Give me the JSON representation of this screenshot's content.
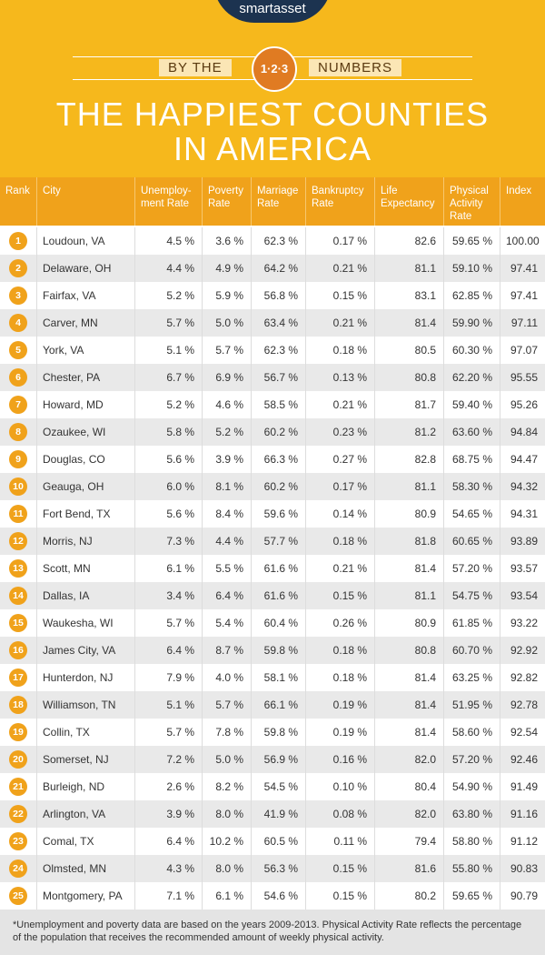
{
  "logo": "smartasset",
  "banner": {
    "left": "BY THE",
    "badge": "1·2·3",
    "right": "NUMBERS"
  },
  "title": {
    "line1": "THE HAPPIEST COUNTIES",
    "line2": "IN AMERICA"
  },
  "table": {
    "headers": [
      "Rank",
      "City",
      "Unemploy-ment Rate",
      "Poverty Rate",
      "Marriage Rate",
      "Bankruptcy Rate",
      "Life Expectancy",
      "Physical Activity Rate",
      "Index"
    ],
    "rows": [
      [
        "1",
        "Loudoun, VA",
        "4.5 %",
        "3.6 %",
        "62.3 %",
        "0.17 %",
        "82.6",
        "59.65 %",
        "100.00"
      ],
      [
        "2",
        "Delaware, OH",
        "4.4 %",
        "4.9 %",
        "64.2 %",
        "0.21 %",
        "81.1",
        "59.10 %",
        "97.41"
      ],
      [
        "3",
        "Fairfax, VA",
        "5.2 %",
        "5.9 %",
        "56.8 %",
        "0.15 %",
        "83.1",
        "62.85 %",
        "97.41"
      ],
      [
        "4",
        "Carver, MN",
        "5.7 %",
        "5.0 %",
        "63.4 %",
        "0.21 %",
        "81.4",
        "59.90 %",
        "97.11"
      ],
      [
        "5",
        "York, VA",
        "5.1 %",
        "5.7 %",
        "62.3 %",
        "0.18 %",
        "80.5",
        "60.30 %",
        "97.07"
      ],
      [
        "6",
        "Chester, PA",
        "6.7 %",
        "6.9 %",
        "56.7 %",
        "0.13 %",
        "80.8",
        "62.20 %",
        "95.55"
      ],
      [
        "7",
        "Howard, MD",
        "5.2 %",
        "4.6 %",
        "58.5 %",
        "0.21 %",
        "81.7",
        "59.40 %",
        "95.26"
      ],
      [
        "8",
        "Ozaukee, WI",
        "5.8 %",
        "5.2 %",
        "60.2 %",
        "0.23 %",
        "81.2",
        "63.60 %",
        "94.84"
      ],
      [
        "9",
        "Douglas, CO",
        "5.6 %",
        "3.9 %",
        "66.3 %",
        "0.27 %",
        "82.8",
        "68.75 %",
        "94.47"
      ],
      [
        "10",
        "Geauga, OH",
        "6.0 %",
        "8.1 %",
        "60.2 %",
        "0.17 %",
        "81.1",
        "58.30 %",
        "94.32"
      ],
      [
        "11",
        "Fort Bend, TX",
        "5.6 %",
        "8.4 %",
        "59.6 %",
        "0.14 %",
        "80.9",
        "54.65 %",
        "94.31"
      ],
      [
        "12",
        "Morris, NJ",
        "7.3 %",
        "4.4 %",
        "57.7 %",
        "0.18 %",
        "81.8",
        "60.65 %",
        "93.89"
      ],
      [
        "13",
        "Scott, MN",
        "6.1 %",
        "5.5 %",
        "61.6 %",
        "0.21 %",
        "81.4",
        "57.20 %",
        "93.57"
      ],
      [
        "14",
        "Dallas, IA",
        "3.4 %",
        "6.4 %",
        "61.6 %",
        "0.15 %",
        "81.1",
        "54.75 %",
        "93.54"
      ],
      [
        "15",
        "Waukesha, WI",
        "5.7 %",
        "5.4 %",
        "60.4 %",
        "0.26 %",
        "80.9",
        "61.85 %",
        "93.22"
      ],
      [
        "16",
        "James City, VA",
        "6.4 %",
        "8.7 %",
        "59.8 %",
        "0.18 %",
        "80.8",
        "60.70 %",
        "92.92"
      ],
      [
        "17",
        "Hunterdon, NJ",
        "7.9 %",
        "4.0 %",
        "58.1 %",
        "0.18 %",
        "81.4",
        "63.25 %",
        "92.82"
      ],
      [
        "18",
        "Williamson, TN",
        "5.1 %",
        "5.7 %",
        "66.1 %",
        "0.19 %",
        "81.4",
        "51.95 %",
        "92.78"
      ],
      [
        "19",
        "Collin, TX",
        "5.7 %",
        "7.8 %",
        "59.8 %",
        "0.19 %",
        "81.4",
        "58.60 %",
        "92.54"
      ],
      [
        "20",
        "Somerset, NJ",
        "7.2 %",
        "5.0 %",
        "56.9 %",
        "0.16 %",
        "82.0",
        "57.20 %",
        "92.46"
      ],
      [
        "21",
        "Burleigh, ND",
        "2.6 %",
        "8.2 %",
        "54.5 %",
        "0.10 %",
        "80.4",
        "54.90 %",
        "91.49"
      ],
      [
        "22",
        "Arlington, VA",
        "3.9 %",
        "8.0 %",
        "41.9 %",
        "0.08 %",
        "82.0",
        "63.80 %",
        "91.16"
      ],
      [
        "23",
        "Comal, TX",
        "6.4 %",
        "10.2 %",
        "60.5 %",
        "0.11 %",
        "79.4",
        "58.80 %",
        "91.12"
      ],
      [
        "24",
        "Olmsted, MN",
        "4.3 %",
        "8.0 %",
        "56.3 %",
        "0.15 %",
        "81.6",
        "55.80 %",
        "90.83"
      ],
      [
        "25",
        "Montgomery, PA",
        "7.1 %",
        "6.1 %",
        "54.6 %",
        "0.15 %",
        "80.2",
        "59.65 %",
        "90.79"
      ]
    ]
  },
  "footnote": "*Unemployment and poverty data are based on the years 2009-2013. Physical Activity Rate reflects the percentage of the population that receives the recommended amount of weekly physical activity."
}
